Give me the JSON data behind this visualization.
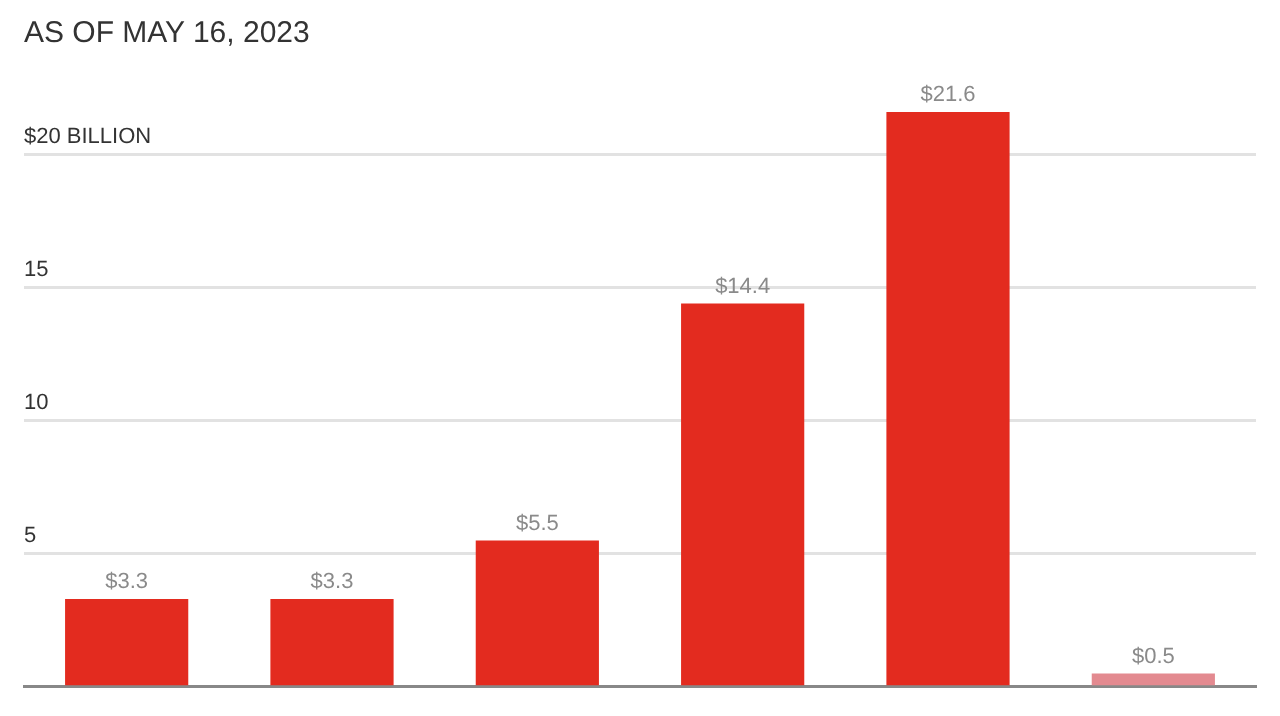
{
  "chart_data": {
    "type": "bar",
    "title": "AS OF MAY 16, 2023",
    "categories": [
      null,
      null,
      null,
      null,
      null,
      null
    ],
    "values": [
      3.3,
      3.3,
      5.5,
      14.4,
      21.6,
      0.5
    ],
    "colors": [
      "#e32b1f",
      "#e32b1f",
      "#e32b1f",
      "#e32b1f",
      "#e32b1f",
      "#e38a90"
    ],
    "value_labels": [
      "$3.3",
      "$3.3",
      "$5.5",
      "$14.4",
      "$21.6",
      "$0.5"
    ],
    "ylim": [
      0,
      21.6
    ],
    "yticks": [
      {
        "value": 0,
        "label": null
      },
      5,
      10,
      15,
      {
        "value": 20,
        "label": "$20 BILLION"
      }
    ],
    "grid": "y"
  }
}
